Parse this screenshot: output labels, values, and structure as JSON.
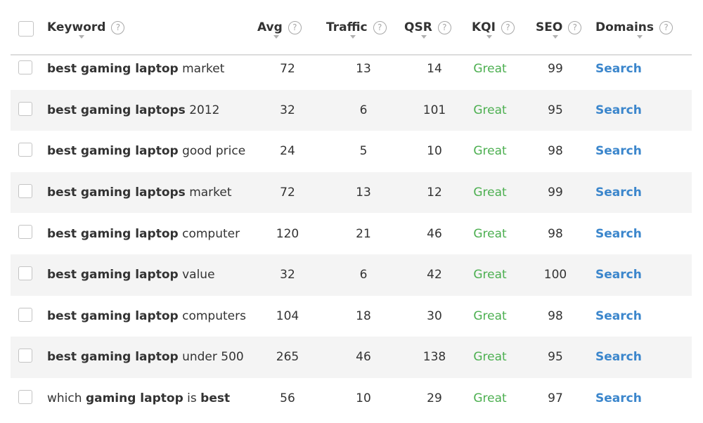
{
  "columns": {
    "keyword": "Keyword",
    "avg": "Avg",
    "traffic": "Traffic",
    "qsr": "QSR",
    "kqi": "KQI",
    "seo": "SEO",
    "domains": "Domains",
    "help_glyph": "?"
  },
  "colors": {
    "kqi_great": "#4caf50",
    "search_link": "#3b86cc",
    "row_alt_bg": "#f4f4f4"
  },
  "rows": [
    {
      "keyword_parts": [
        {
          "text": "best gaming laptop",
          "bold": true
        },
        {
          "text": " market",
          "bold": false
        }
      ],
      "avg": "72",
      "traffic": "13",
      "qsr": "14",
      "kqi": "Great",
      "seo": "99",
      "domains": "Search"
    },
    {
      "keyword_parts": [
        {
          "text": "best gaming laptops",
          "bold": true
        },
        {
          "text": " 2012",
          "bold": false
        }
      ],
      "avg": "32",
      "traffic": "6",
      "qsr": "101",
      "kqi": "Great",
      "seo": "95",
      "domains": "Search"
    },
    {
      "keyword_parts": [
        {
          "text": "best gaming laptop",
          "bold": true
        },
        {
          "text": " good price",
          "bold": false
        }
      ],
      "avg": "24",
      "traffic": "5",
      "qsr": "10",
      "kqi": "Great",
      "seo": "98",
      "domains": "Search"
    },
    {
      "keyword_parts": [
        {
          "text": "best gaming laptops",
          "bold": true
        },
        {
          "text": " market",
          "bold": false
        }
      ],
      "avg": "72",
      "traffic": "13",
      "qsr": "12",
      "kqi": "Great",
      "seo": "99",
      "domains": "Search"
    },
    {
      "keyword_parts": [
        {
          "text": "best gaming laptop",
          "bold": true
        },
        {
          "text": " computer",
          "bold": false
        }
      ],
      "avg": "120",
      "traffic": "21",
      "qsr": "46",
      "kqi": "Great",
      "seo": "98",
      "domains": "Search"
    },
    {
      "keyword_parts": [
        {
          "text": "best gaming laptop",
          "bold": true
        },
        {
          "text": " value",
          "bold": false
        }
      ],
      "avg": "32",
      "traffic": "6",
      "qsr": "42",
      "kqi": "Great",
      "seo": "100",
      "domains": "Search"
    },
    {
      "keyword_parts": [
        {
          "text": "best gaming laptop",
          "bold": true
        },
        {
          "text": " computers",
          "bold": false
        }
      ],
      "avg": "104",
      "traffic": "18",
      "qsr": "30",
      "kqi": "Great",
      "seo": "98",
      "domains": "Search"
    },
    {
      "keyword_parts": [
        {
          "text": "best gaming laptop",
          "bold": true
        },
        {
          "text": " under 500",
          "bold": false
        }
      ],
      "avg": "265",
      "traffic": "46",
      "qsr": "138",
      "kqi": "Great",
      "seo": "95",
      "domains": "Search"
    },
    {
      "keyword_parts": [
        {
          "text": "which ",
          "bold": false
        },
        {
          "text": "gaming laptop",
          "bold": true
        },
        {
          "text": " is ",
          "bold": false
        },
        {
          "text": "best",
          "bold": true
        }
      ],
      "avg": "56",
      "traffic": "10",
      "qsr": "29",
      "kqi": "Great",
      "seo": "97",
      "domains": "Search"
    }
  ]
}
